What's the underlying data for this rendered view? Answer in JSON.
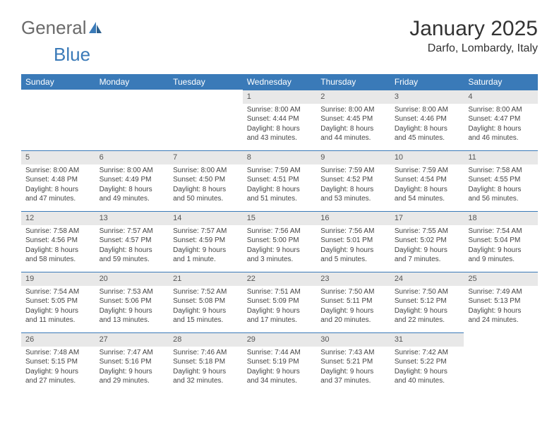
{
  "logo": {
    "general": "General",
    "blue": "Blue"
  },
  "title": "January 2025",
  "location": "Darfo, Lombardy, Italy",
  "colors": {
    "brand_blue": "#3a7ab8",
    "header_bg": "#3a7ab8",
    "daynum_bg": "#e8e8e8",
    "text": "#444444",
    "logo_gray": "#6a6a6a"
  },
  "fonts": {
    "base": "Arial",
    "title_size": 30,
    "header_size": 12,
    "cell_size": 10
  },
  "weekdays": [
    "Sunday",
    "Monday",
    "Tuesday",
    "Wednesday",
    "Thursday",
    "Friday",
    "Saturday"
  ],
  "weeks": [
    [
      {
        "day": "",
        "sunrise": "",
        "sunset": "",
        "daylight": ""
      },
      {
        "day": "",
        "sunrise": "",
        "sunset": "",
        "daylight": ""
      },
      {
        "day": "",
        "sunrise": "",
        "sunset": "",
        "daylight": ""
      },
      {
        "day": "1",
        "sunrise": "Sunrise: 8:00 AM",
        "sunset": "Sunset: 4:44 PM",
        "daylight": "Daylight: 8 hours and 43 minutes."
      },
      {
        "day": "2",
        "sunrise": "Sunrise: 8:00 AM",
        "sunset": "Sunset: 4:45 PM",
        "daylight": "Daylight: 8 hours and 44 minutes."
      },
      {
        "day": "3",
        "sunrise": "Sunrise: 8:00 AM",
        "sunset": "Sunset: 4:46 PM",
        "daylight": "Daylight: 8 hours and 45 minutes."
      },
      {
        "day": "4",
        "sunrise": "Sunrise: 8:00 AM",
        "sunset": "Sunset: 4:47 PM",
        "daylight": "Daylight: 8 hours and 46 minutes."
      }
    ],
    [
      {
        "day": "5",
        "sunrise": "Sunrise: 8:00 AM",
        "sunset": "Sunset: 4:48 PM",
        "daylight": "Daylight: 8 hours and 47 minutes."
      },
      {
        "day": "6",
        "sunrise": "Sunrise: 8:00 AM",
        "sunset": "Sunset: 4:49 PM",
        "daylight": "Daylight: 8 hours and 49 minutes."
      },
      {
        "day": "7",
        "sunrise": "Sunrise: 8:00 AM",
        "sunset": "Sunset: 4:50 PM",
        "daylight": "Daylight: 8 hours and 50 minutes."
      },
      {
        "day": "8",
        "sunrise": "Sunrise: 7:59 AM",
        "sunset": "Sunset: 4:51 PM",
        "daylight": "Daylight: 8 hours and 51 minutes."
      },
      {
        "day": "9",
        "sunrise": "Sunrise: 7:59 AM",
        "sunset": "Sunset: 4:52 PM",
        "daylight": "Daylight: 8 hours and 53 minutes."
      },
      {
        "day": "10",
        "sunrise": "Sunrise: 7:59 AM",
        "sunset": "Sunset: 4:54 PM",
        "daylight": "Daylight: 8 hours and 54 minutes."
      },
      {
        "day": "11",
        "sunrise": "Sunrise: 7:58 AM",
        "sunset": "Sunset: 4:55 PM",
        "daylight": "Daylight: 8 hours and 56 minutes."
      }
    ],
    [
      {
        "day": "12",
        "sunrise": "Sunrise: 7:58 AM",
        "sunset": "Sunset: 4:56 PM",
        "daylight": "Daylight: 8 hours and 58 minutes."
      },
      {
        "day": "13",
        "sunrise": "Sunrise: 7:57 AM",
        "sunset": "Sunset: 4:57 PM",
        "daylight": "Daylight: 8 hours and 59 minutes."
      },
      {
        "day": "14",
        "sunrise": "Sunrise: 7:57 AM",
        "sunset": "Sunset: 4:59 PM",
        "daylight": "Daylight: 9 hours and 1 minute."
      },
      {
        "day": "15",
        "sunrise": "Sunrise: 7:56 AM",
        "sunset": "Sunset: 5:00 PM",
        "daylight": "Daylight: 9 hours and 3 minutes."
      },
      {
        "day": "16",
        "sunrise": "Sunrise: 7:56 AM",
        "sunset": "Sunset: 5:01 PM",
        "daylight": "Daylight: 9 hours and 5 minutes."
      },
      {
        "day": "17",
        "sunrise": "Sunrise: 7:55 AM",
        "sunset": "Sunset: 5:02 PM",
        "daylight": "Daylight: 9 hours and 7 minutes."
      },
      {
        "day": "18",
        "sunrise": "Sunrise: 7:54 AM",
        "sunset": "Sunset: 5:04 PM",
        "daylight": "Daylight: 9 hours and 9 minutes."
      }
    ],
    [
      {
        "day": "19",
        "sunrise": "Sunrise: 7:54 AM",
        "sunset": "Sunset: 5:05 PM",
        "daylight": "Daylight: 9 hours and 11 minutes."
      },
      {
        "day": "20",
        "sunrise": "Sunrise: 7:53 AM",
        "sunset": "Sunset: 5:06 PM",
        "daylight": "Daylight: 9 hours and 13 minutes."
      },
      {
        "day": "21",
        "sunrise": "Sunrise: 7:52 AM",
        "sunset": "Sunset: 5:08 PM",
        "daylight": "Daylight: 9 hours and 15 minutes."
      },
      {
        "day": "22",
        "sunrise": "Sunrise: 7:51 AM",
        "sunset": "Sunset: 5:09 PM",
        "daylight": "Daylight: 9 hours and 17 minutes."
      },
      {
        "day": "23",
        "sunrise": "Sunrise: 7:50 AM",
        "sunset": "Sunset: 5:11 PM",
        "daylight": "Daylight: 9 hours and 20 minutes."
      },
      {
        "day": "24",
        "sunrise": "Sunrise: 7:50 AM",
        "sunset": "Sunset: 5:12 PM",
        "daylight": "Daylight: 9 hours and 22 minutes."
      },
      {
        "day": "25",
        "sunrise": "Sunrise: 7:49 AM",
        "sunset": "Sunset: 5:13 PM",
        "daylight": "Daylight: 9 hours and 24 minutes."
      }
    ],
    [
      {
        "day": "26",
        "sunrise": "Sunrise: 7:48 AM",
        "sunset": "Sunset: 5:15 PM",
        "daylight": "Daylight: 9 hours and 27 minutes."
      },
      {
        "day": "27",
        "sunrise": "Sunrise: 7:47 AM",
        "sunset": "Sunset: 5:16 PM",
        "daylight": "Daylight: 9 hours and 29 minutes."
      },
      {
        "day": "28",
        "sunrise": "Sunrise: 7:46 AM",
        "sunset": "Sunset: 5:18 PM",
        "daylight": "Daylight: 9 hours and 32 minutes."
      },
      {
        "day": "29",
        "sunrise": "Sunrise: 7:44 AM",
        "sunset": "Sunset: 5:19 PM",
        "daylight": "Daylight: 9 hours and 34 minutes."
      },
      {
        "day": "30",
        "sunrise": "Sunrise: 7:43 AM",
        "sunset": "Sunset: 5:21 PM",
        "daylight": "Daylight: 9 hours and 37 minutes."
      },
      {
        "day": "31",
        "sunrise": "Sunrise: 7:42 AM",
        "sunset": "Sunset: 5:22 PM",
        "daylight": "Daylight: 9 hours and 40 minutes."
      },
      {
        "day": "",
        "sunrise": "",
        "sunset": "",
        "daylight": ""
      }
    ]
  ]
}
